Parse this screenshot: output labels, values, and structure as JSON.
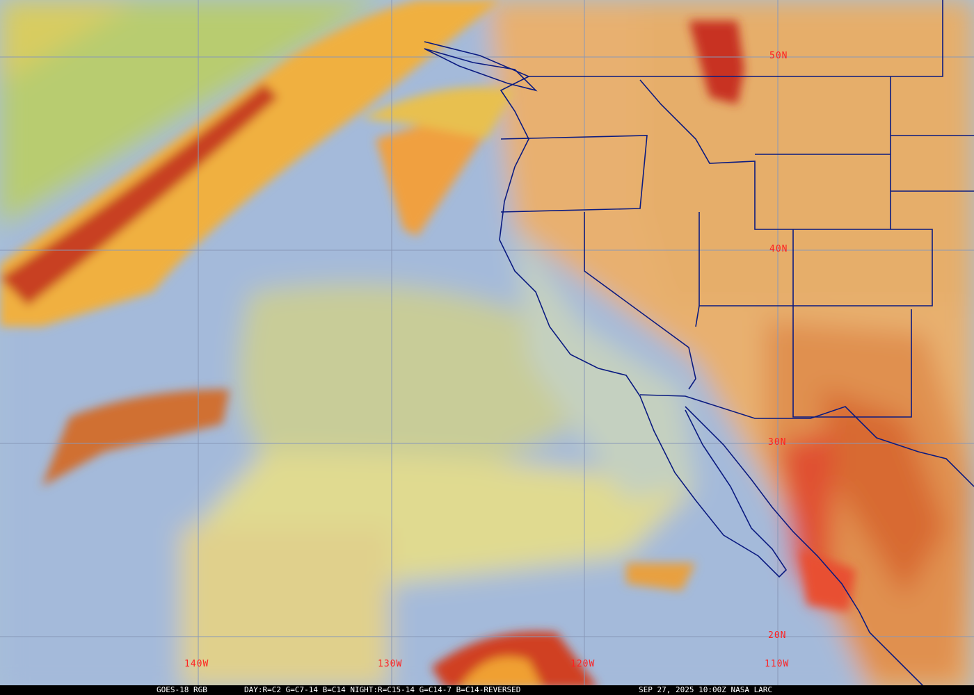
{
  "map": {
    "lat_labels": [
      "50N",
      "40N",
      "30N",
      "20N"
    ],
    "lon_labels": [
      "140W",
      "130W",
      "120W",
      "110W"
    ],
    "label_color": "#ff2020",
    "border_color": "#0a1a80",
    "grid_color": "#8898b8"
  },
  "caption": {
    "satellite": "GOES-18 RGB",
    "recipe": "DAY:R=C2 G=C7-14 B=C14 NIGHT:R=C15-14 G=C14-7 B=C14-REVERSED",
    "timestamp": "SEP 27, 2025 10:00Z NASA LARC"
  }
}
